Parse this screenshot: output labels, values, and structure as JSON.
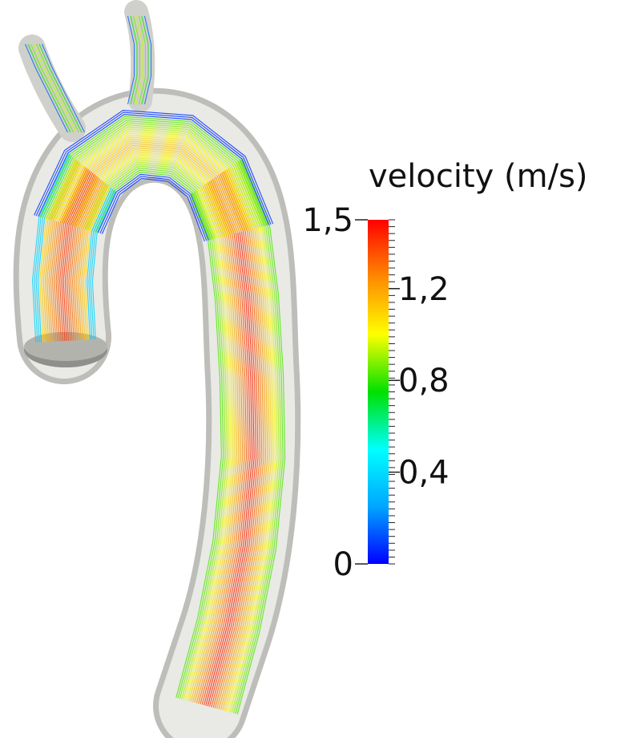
{
  "legend": {
    "title": "velocity (m/s)",
    "min": 0,
    "max": 1.5,
    "tick_labels": [
      {
        "value": 1.5,
        "label": "1,5"
      },
      {
        "value": 1.2,
        "label": "1,2"
      },
      {
        "value": 0.8,
        "label": "0,8"
      },
      {
        "value": 0.4,
        "label": "0,4"
      },
      {
        "value": 0.0,
        "label": "0"
      }
    ],
    "colormap": [
      "#0000ff",
      "#00a6ff",
      "#00ffff",
      "#00e000",
      "#ffff00",
      "#ff8a00",
      "#ff0000"
    ]
  },
  "colors": {
    "vessel_fill": "#dcdcd8",
    "vessel_edge": "#b8b8b4",
    "background": "#ffffff"
  }
}
